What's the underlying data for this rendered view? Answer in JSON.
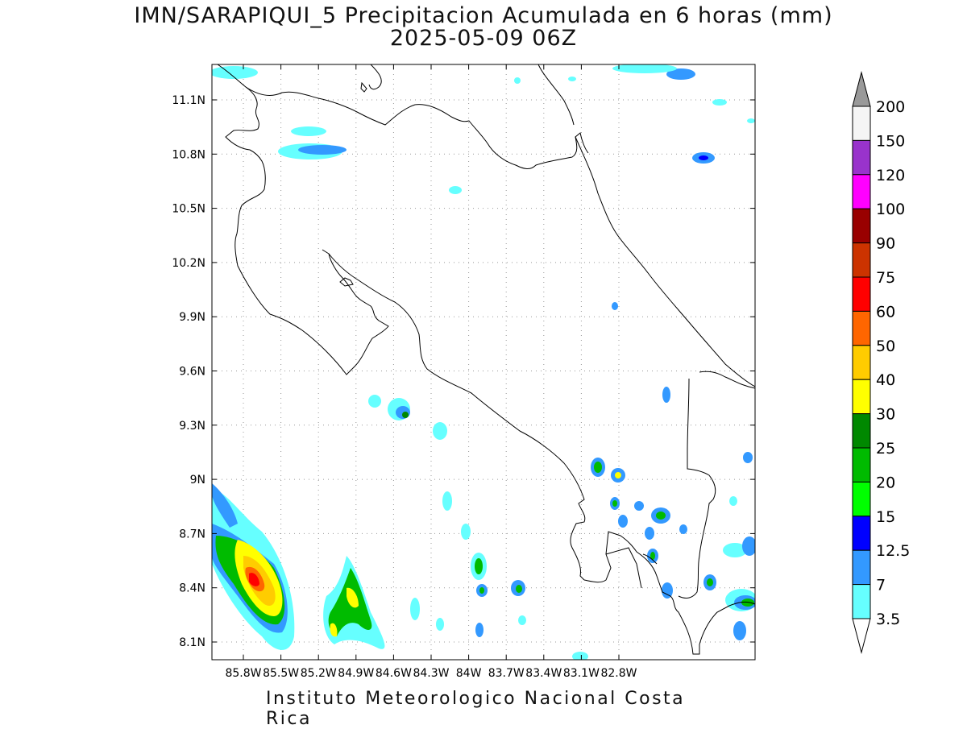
{
  "title": {
    "line1": "IMN/SARAPIQUI_5 Precipitacion Acumulada en 6 horas (mm)",
    "line2": "2025-05-09 06Z"
  },
  "footer": "Instituto Meteorologico Nacional Costa Rica",
  "map": {
    "lat_ticks": [
      "11.1N",
      "10.8N",
      "10.5N",
      "10.2N",
      "9.9N",
      "9.6N",
      "9.3N",
      "9N",
      "8.7N",
      "8.4N",
      "8.1N"
    ],
    "lon_ticks": [
      "85.8W",
      "85.5W",
      "85.2W",
      "84.9W",
      "84.6W",
      "84.3W",
      "84W",
      "83.7W",
      "83.4W",
      "83.1W",
      "82.8W"
    ],
    "grid": "dotted"
  },
  "colorbar": {
    "labels": [
      "200",
      "150",
      "120",
      "100",
      "90",
      "75",
      "60",
      "50",
      "40",
      "30",
      "25",
      "20",
      "15",
      "12.5",
      "7",
      "3.5"
    ],
    "colors": [
      "#f5f5f5",
      "#9933cc",
      "#ff00ff",
      "#990000",
      "#cc3300",
      "#ff0000",
      "#ff6600",
      "#ffcc00",
      "#ffff00",
      "#008800",
      "#00bb00",
      "#00ff00",
      "#0000ff",
      "#3399ff",
      "#66ffff"
    ],
    "top_arrow": "#999999"
  }
}
